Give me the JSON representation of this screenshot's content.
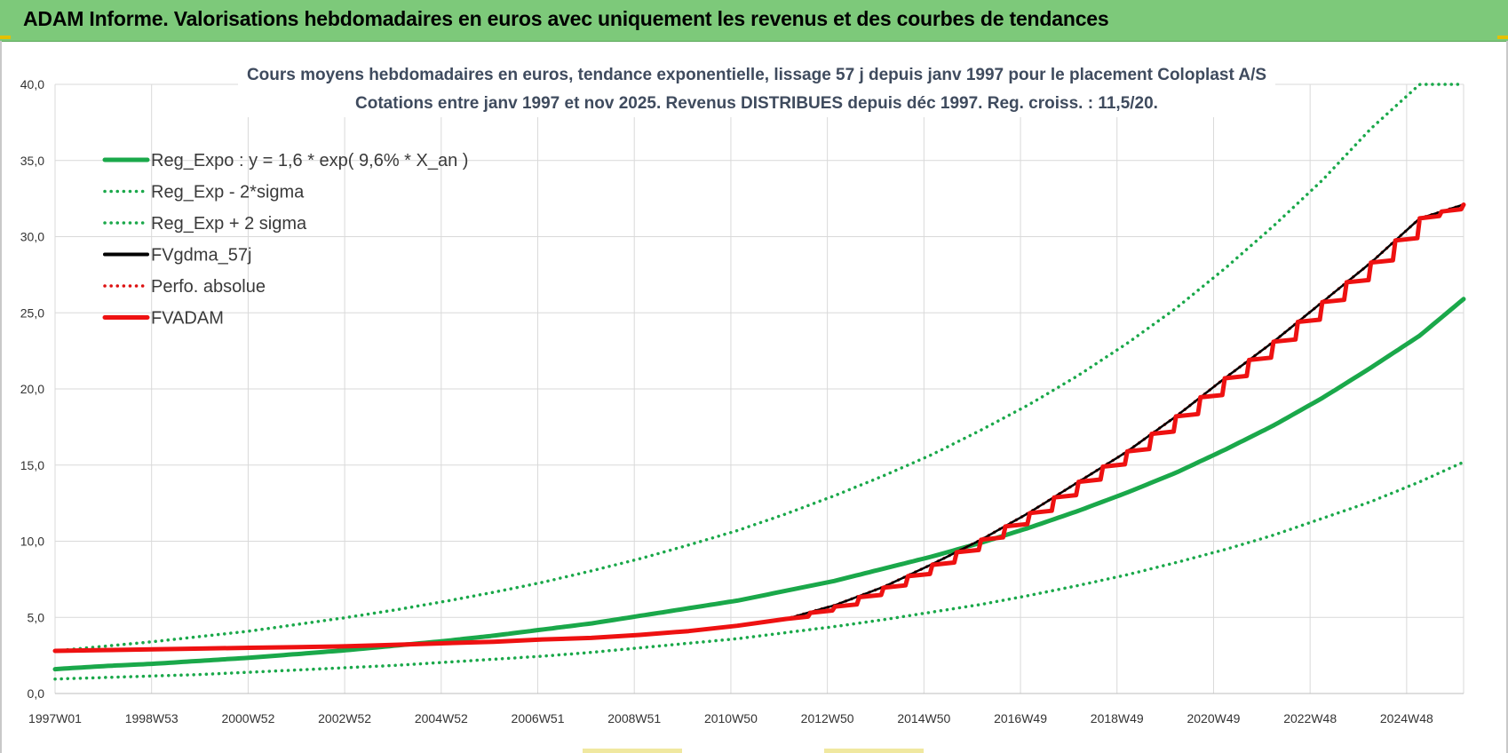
{
  "header": {
    "title": "ADAM Informe. Valorisations hebdomadaires en euros avec uniquement les revenus et des courbes de tendances"
  },
  "colors": {
    "banner": "#7dc97a",
    "trend": "#1aa84a",
    "fvgdma": "#000000",
    "fvadam": "#ee1111",
    "perfo": "#dd1111",
    "grid": "#d9d9d9"
  },
  "chart_data": {
    "type": "line",
    "title": "Cours moyens hebdomadaires en euros, tendance exponentielle, lissage 57 j depuis janv 1997 pour le placement Coloplast A/S",
    "subtitle": "Cotations entre janv 1997 et nov 2025. Revenus DISTRIBUES depuis déc 1997. Reg. croiss. : 11,5/20.",
    "xlabel": "",
    "ylabel": "",
    "ylim": [
      0,
      40
    ],
    "y_ticks": [
      "0,0",
      "5,0",
      "10,0",
      "15,0",
      "20,0",
      "25,0",
      "30,0",
      "35,0",
      "40,0"
    ],
    "x_ticks": [
      "1997W01",
      "1998W53",
      "2000W52",
      "2002W52",
      "2004W52",
      "2006W51",
      "2008W51",
      "2010W50",
      "2012W50",
      "2014W50",
      "2016W49",
      "2018W49",
      "2020W49",
      "2022W48",
      "2024W48"
    ],
    "x": [
      1997.0,
      1998.0,
      1999.0,
      2000.0,
      2001.0,
      2002.0,
      2003.0,
      2004.0,
      2005.0,
      2006.0,
      2007.0,
      2008.0,
      2009.0,
      2010.0,
      2011.0,
      2012.0,
      2013.0,
      2014.0,
      2015.0,
      2016.0,
      2017.0,
      2018.0,
      2019.0,
      2020.0,
      2021.0,
      2022.0,
      2023.0,
      2024.0,
      2025.0,
      2025.9
    ],
    "grid": true,
    "legend_position": "top-left",
    "series": [
      {
        "name": "Reg_Expo : y = 1,6 * exp( 9,6% *  X_an )",
        "style": "solid-thick",
        "color": "#1aa84a",
        "values": [
          1.6,
          1.8,
          1.95,
          2.15,
          2.35,
          2.6,
          2.85,
          3.15,
          3.45,
          3.8,
          4.2,
          4.6,
          5.1,
          5.6,
          6.1,
          6.75,
          7.4,
          8.2,
          9.0,
          9.9,
          10.9,
          12.0,
          13.2,
          14.5,
          16.0,
          17.6,
          19.4,
          21.4,
          23.5,
          25.9
        ]
      },
      {
        "name": "Reg_Exp - 2*sigma",
        "style": "dotted",
        "color": "#1aa84a",
        "values": [
          0.95,
          1.05,
          1.15,
          1.25,
          1.4,
          1.55,
          1.7,
          1.85,
          2.05,
          2.25,
          2.45,
          2.7,
          3.0,
          3.3,
          3.6,
          4.0,
          4.4,
          4.85,
          5.35,
          5.85,
          6.45,
          7.1,
          7.8,
          8.6,
          9.45,
          10.4,
          11.5,
          12.6,
          13.9,
          15.2
        ]
      },
      {
        "name": "Reg_Exp + 2 sigma",
        "style": "dotted",
        "color": "#1aa84a",
        "values": [
          2.8,
          3.1,
          3.4,
          3.75,
          4.1,
          4.55,
          5.0,
          5.5,
          6.05,
          6.65,
          7.3,
          8.05,
          8.85,
          9.75,
          10.7,
          11.8,
          13.0,
          14.3,
          15.7,
          17.3,
          19.0,
          20.9,
          23.0,
          25.3,
          27.9,
          30.7,
          33.7,
          37.1,
          40.0,
          40.0
        ]
      },
      {
        "name": "FVgdma_57j",
        "style": "solid",
        "color": "#000000",
        "values": [
          2.8,
          2.85,
          2.9,
          2.95,
          3.0,
          3.05,
          3.1,
          3.2,
          3.3,
          3.4,
          3.55,
          3.65,
          3.85,
          4.1,
          4.45,
          4.9,
          5.8,
          7.0,
          8.5,
          10.1,
          11.9,
          13.9,
          15.9,
          18.2,
          20.7,
          23.1,
          25.7,
          28.3,
          31.2,
          32.1
        ]
      },
      {
        "name": "Perfo. absolue",
        "style": "dotted",
        "color": "#dd1111",
        "values": [
          2.8,
          2.85,
          2.9,
          2.95,
          3.0,
          3.05,
          3.1,
          3.2,
          3.3,
          3.4,
          3.55,
          3.65,
          3.85,
          4.1,
          4.45,
          4.9,
          5.8,
          7.0,
          8.5,
          10.1,
          11.9,
          13.9,
          15.9,
          18.2,
          20.7,
          23.1,
          25.7,
          28.3,
          31.2,
          32.1
        ]
      },
      {
        "name": "FVADAM",
        "style": "steps-thick",
        "color": "#ee1111",
        "values": [
          2.8,
          2.85,
          2.9,
          2.95,
          3.0,
          3.05,
          3.1,
          3.2,
          3.3,
          3.4,
          3.55,
          3.65,
          3.85,
          4.1,
          4.45,
          4.9,
          5.7,
          6.95,
          8.45,
          10.1,
          11.85,
          13.9,
          15.9,
          18.2,
          20.7,
          23.1,
          25.7,
          28.3,
          31.2,
          32.1
        ]
      }
    ]
  }
}
